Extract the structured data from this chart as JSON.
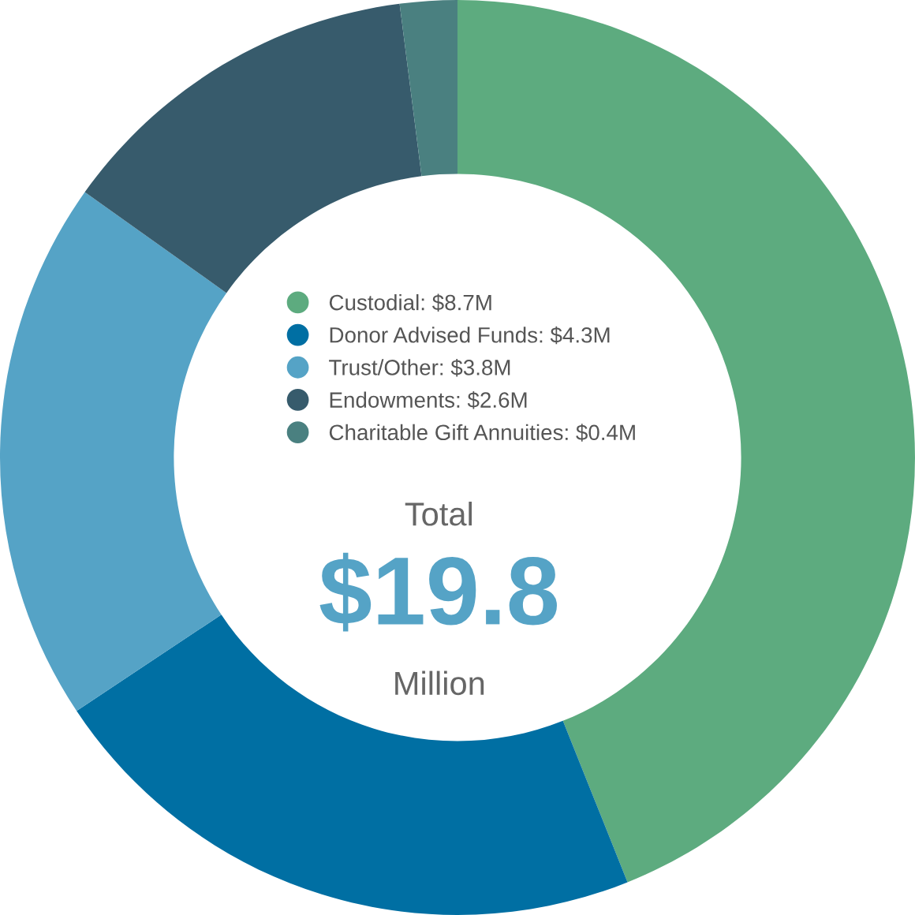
{
  "chart_data": {
    "type": "donut",
    "categories": [
      "Custodial: $8.7M",
      "Donor Advised Funds: $4.3M",
      "Trust/Other: $3.8M",
      "Endowments: $2.6M",
      "Charitable Gift Annuities: $0.4M"
    ],
    "values": [
      8.7,
      4.3,
      3.8,
      2.6,
      0.4
    ],
    "colors": [
      "#5dab7f",
      "#006fa3",
      "#55a3c6",
      "#375b6c",
      "#4a8080"
    ],
    "legend": "center",
    "annotations": [
      "Total",
      "$19.8",
      "Million"
    ]
  }
}
